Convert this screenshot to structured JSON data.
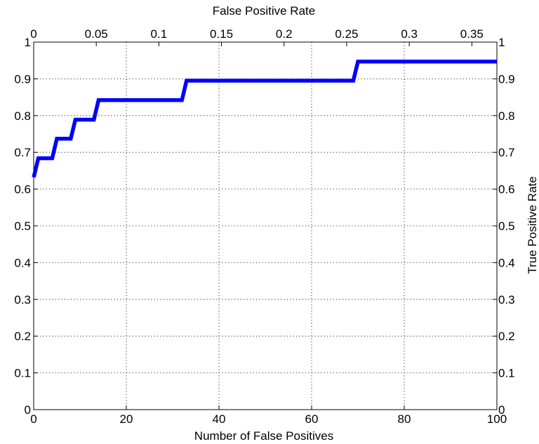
{
  "chart_data": {
    "type": "line",
    "x_bottom": {
      "label": "Number of False Positives",
      "range": [
        0,
        100
      ],
      "ticks": [
        0,
        20,
        40,
        60,
        80,
        100
      ],
      "tick_labels": [
        "0",
        "20",
        "40",
        "60",
        "80",
        "100"
      ]
    },
    "x_top": {
      "label": "False Positive Rate",
      "range": [
        0,
        0.37
      ],
      "ticks": [
        0,
        0.05,
        0.1,
        0.15,
        0.2,
        0.25,
        0.3,
        0.35
      ],
      "tick_labels": [
        "0",
        "0.05",
        "0.1",
        "0.15",
        "0.2",
        "0.25",
        "0.3",
        "0.35"
      ]
    },
    "y": {
      "label_left": "",
      "label_right": "True Positive Rate",
      "range": [
        0,
        1
      ],
      "ticks": [
        0,
        0.1,
        0.2,
        0.3,
        0.4,
        0.5,
        0.6,
        0.7,
        0.8,
        0.9,
        1
      ],
      "tick_labels": [
        "0",
        "0.1",
        "0.2",
        "0.3",
        "0.4",
        "0.5",
        "0.6",
        "0.7",
        "0.8",
        "0.9",
        "1"
      ]
    },
    "grid": true,
    "series": [
      {
        "color": "#0000ff",
        "points": [
          [
            0,
            0.632
          ],
          [
            1,
            0.684
          ],
          [
            4,
            0.684
          ],
          [
            5,
            0.737
          ],
          [
            8,
            0.737
          ],
          [
            9,
            0.789
          ],
          [
            13,
            0.789
          ],
          [
            14,
            0.842
          ],
          [
            32,
            0.842
          ],
          [
            33,
            0.895
          ],
          [
            69,
            0.895
          ],
          [
            70,
            0.947
          ],
          [
            100,
            0.947
          ]
        ]
      }
    ]
  }
}
